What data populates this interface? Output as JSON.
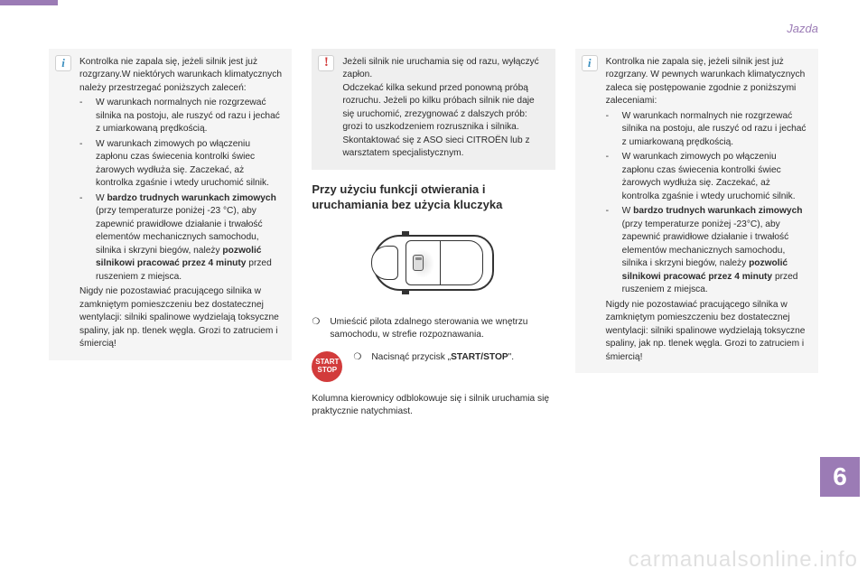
{
  "header": {
    "section": "Jazda"
  },
  "chapter_number": "6",
  "watermark": "carmanualsonline.info",
  "col1": {
    "info": {
      "intro": "Kontrolka nie zapala się, jeżeli silnik jest już rozgrzany.W niektórych warunkach klimatycznych należy przestrzegać poniższych zaleceń:",
      "dash1": "-",
      "item1": "W warunkach normalnych nie rozgrzewać silnika na postoju, ale ruszyć od razu i jechać z umiarkowaną prędkością.",
      "dash2": "-",
      "item2": "W warunkach zimowych po włączeniu zapłonu czas świecenia kontrolki świec żarowych wydłuża się. Zaczekać, aż kontrolka zgaśnie i wtedy uruchomić silnik.",
      "dash3": "-",
      "item3_pre": "W ",
      "item3_b1": "bardzo trudnych warunkach zimowych",
      "item3_mid": " (przy temperaturze poniżej -23 °C), aby zapewnić prawidłowe działanie i trwałość elementów mechanicznych samochodu, silnika i skrzyni biegów, należy ",
      "item3_b2": "pozwolić silnikowi pracować przez 4 minuty",
      "item3_post": " przed ruszeniem z miejsca.",
      "closing": "Nigdy nie pozostawiać pracującego silnika w zamkniętym pomieszczeniu bez dostatecznej wentylacji: silniki spalinowe wydzielają toksyczne spaliny, jak np. tlenek węgla. Grozi to zatruciem i śmiercią!"
    }
  },
  "col2": {
    "warn": {
      "p1": "Jeżeli silnik nie uruchamia się od razu, wyłączyć zapłon.",
      "p2": "Odczekać kilka sekund przed ponowną próbą rozruchu. Jeżeli po kilku próbach silnik nie daje się uruchomić, zrezygnować z dalszych prób: grozi to uszkodzeniem rozrusznika i silnika.",
      "p3": "Skontaktować się z ASO sieci CITROËN lub z warsztatem specjalistycznym."
    },
    "heading": "Przy użyciu funkcji otwierania i uruchamiania bez użycia kluczyka",
    "bullet_marker": "❍",
    "bullet1": "Umieścić pilota zdalnego sterowania we wnętrzu samochodu, w strefie rozpoznawania.",
    "start_label_top": "START",
    "start_label_bot": "STOP",
    "bullet2_pre": "Nacisnąć przycisk „",
    "bullet2_b": "START/STOP",
    "bullet2_post": "\".",
    "closing": "Kolumna kierownicy odblokowuje się i silnik uruchamia się praktycznie natychmiast."
  },
  "col3": {
    "info": {
      "intro": "Kontrolka nie zapala się, jeżeli silnik jest już rozgrzany. W pewnych warunkach klimatycznych zaleca się postępowanie zgodnie z poniższymi zaleceniami:",
      "dash1": "-",
      "item1": "W warunkach normalnych nie rozgrzewać silnika na postoju, ale ruszyć od razu i jechać z umiarkowaną prędkością.",
      "dash2": "-",
      "item2": "W warunkach zimowych po włączeniu zapłonu czas świecenia kontrolki świec żarowych wydłuża się. Zaczekać, aż kontrolka zgaśnie i wtedy uruchomić silnik.",
      "dash3": "-",
      "item3_pre": "W ",
      "item3_b1": "bardzo trudnych warunkach zimowych",
      "item3_mid": " (przy temperaturze poniżej -23°C), aby zapewnić prawidłowe działanie i trwałość elementów mechanicznych samochodu, silnika i skrzyni biegów, należy ",
      "item3_b2": "pozwolić silnikowi pracować przez 4 minuty",
      "item3_post": " przed ruszeniem z miejsca.",
      "closing": "Nigdy nie pozostawiać pracującego silnika w zamkniętym pomieszczeniu bez dostatecznej wentylacji: silniki spalinowe wydzielają toksyczne spaliny, jak np. tlenek węgla. Grozi to zatruciem i śmiercią!"
    }
  }
}
